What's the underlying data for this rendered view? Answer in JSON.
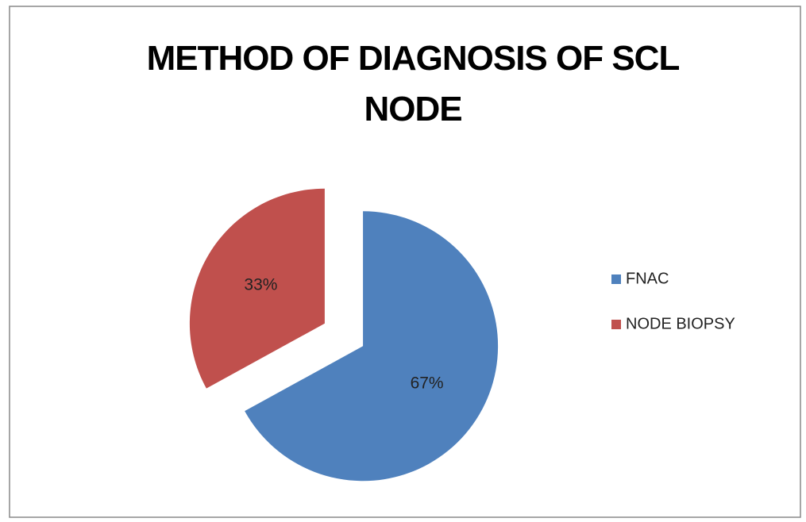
{
  "chart_data": {
    "type": "pie",
    "title": "METHOD OF DIAGNOSIS OF SCL NODE",
    "categories": [
      "FNAC",
      "NODE BIOPSY"
    ],
    "values": [
      67,
      33
    ],
    "value_labels": [
      "67%",
      "33%"
    ],
    "colors": [
      "#4f81bd",
      "#c0504d"
    ],
    "legend": "right"
  }
}
